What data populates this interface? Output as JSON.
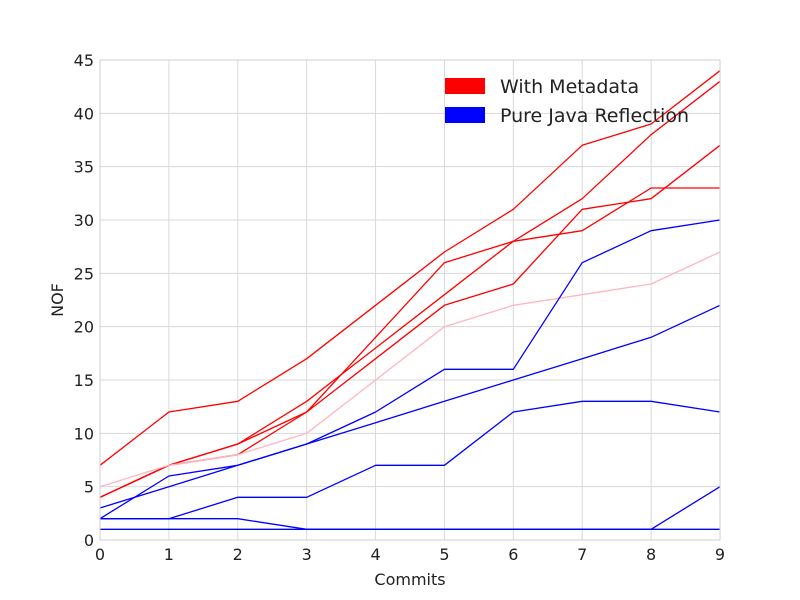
{
  "chart_data": {
    "type": "line",
    "title": "",
    "xlabel": "Commits",
    "ylabel": "NOF",
    "x": [
      0,
      1,
      2,
      3,
      4,
      5,
      6,
      7,
      8,
      9
    ],
    "xlim": [
      0,
      9
    ],
    "ylim": [
      0,
      45
    ],
    "xticks": [
      0,
      1,
      2,
      3,
      4,
      5,
      6,
      7,
      8,
      9
    ],
    "yticks": [
      0,
      5,
      10,
      15,
      20,
      25,
      30,
      35,
      40,
      45
    ],
    "grid": true,
    "legend_position": "top-right",
    "legend": [
      {
        "label": "With Metadata",
        "color": "#ff0000"
      },
      {
        "label": "Pure Java Reflection",
        "color": "#0000ff"
      }
    ],
    "series": [
      {
        "group": "With Metadata",
        "color": "#ff0000",
        "values": [
          7,
          12,
          13,
          17,
          22,
          27,
          31,
          37,
          39,
          44
        ]
      },
      {
        "group": "With Metadata",
        "color": "#ff0000",
        "values": [
          4,
          7,
          9,
          12,
          19,
          26,
          28,
          29,
          33,
          33
        ]
      },
      {
        "group": "With Metadata",
        "color": "#ff0000",
        "values": [
          4,
          7,
          9,
          13,
          18,
          23,
          28,
          32,
          38,
          43
        ]
      },
      {
        "group": "With Metadata",
        "color": "#ff0000",
        "values": [
          4,
          7,
          8,
          12,
          17,
          22,
          24,
          31,
          32,
          37
        ]
      },
      {
        "group": "With Metadata",
        "color": "#ffb6c1",
        "values": [
          5,
          7,
          8,
          10,
          15,
          20,
          22,
          23,
          24,
          27
        ]
      },
      {
        "group": "Pure Java Reflection",
        "color": "#0000ff",
        "values": [
          2,
          6,
          7,
          9,
          12,
          16,
          16,
          26,
          29,
          30
        ]
      },
      {
        "group": "Pure Java Reflection",
        "color": "#0000ff",
        "values": [
          3,
          5,
          7,
          9,
          11,
          13,
          15,
          17,
          19,
          22
        ]
      },
      {
        "group": "Pure Java Reflection",
        "color": "#0000ff",
        "values": [
          2,
          2,
          4,
          4,
          7,
          7,
          12,
          13,
          13,
          12
        ]
      },
      {
        "group": "Pure Java Reflection",
        "color": "#0000ff",
        "values": [
          2,
          2,
          2,
          1,
          1,
          1,
          1,
          1,
          1,
          5
        ]
      },
      {
        "group": "Pure Java Reflection",
        "color": "#0000ff",
        "values": [
          1,
          1,
          1,
          1,
          1,
          1,
          1,
          1,
          1,
          1
        ]
      }
    ]
  }
}
